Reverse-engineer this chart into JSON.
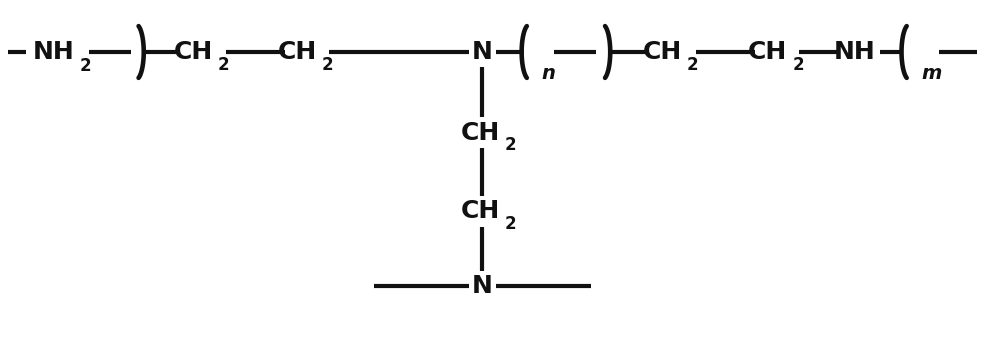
{
  "bg_color": "#ffffff",
  "line_color": "#111111",
  "text_color": "#111111",
  "line_width": 3.0,
  "font_size": 18,
  "sub_font_size": 12,
  "fig_width": 10.0,
  "fig_height": 3.5,
  "dpi": 100,
  "xlim": [
    0,
    10
  ],
  "ylim": [
    0,
    3.5
  ],
  "y_main": 3.0,
  "N_x": 4.82,
  "v_x": 4.82,
  "ch2_v1_y": 2.18,
  "ch2_v2_y": 1.38,
  "N_bot_y": 0.62
}
